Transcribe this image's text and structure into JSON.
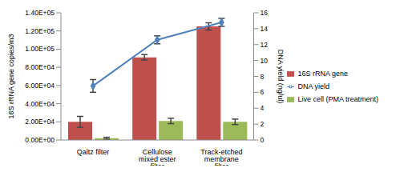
{
  "chart_data": {
    "type": "bar",
    "categories": [
      "Qaltz filter",
      "Cellulose mixed ester filter",
      "Track-etched membrane filter"
    ],
    "series": [
      {
        "name": "16S rRNA gene",
        "type": "bar",
        "color": "#c0504d",
        "values": [
          20000,
          91000,
          125000
        ],
        "errors": [
          6000,
          3000,
          4000
        ]
      },
      {
        "name": "Live cell (PMA treatment)",
        "type": "bar",
        "color": "#9bbb59",
        "values": [
          2000,
          21000,
          20000
        ],
        "errors": [
          1000,
          3000,
          3000
        ]
      },
      {
        "name": "DNA yield",
        "type": "line",
        "axis": "y2",
        "color": "#4f81bd",
        "marker": "diamond",
        "values": [
          6.8,
          12.6,
          14.8
        ],
        "errors": [
          0.8,
          0.5,
          0.5
        ]
      }
    ],
    "y_label": "16S rRNA gene copies/m3",
    "y2_label": "DNA yield (ng/ul)",
    "ylim": [
      0,
      140000
    ],
    "yticks": [
      {
        "value": 0,
        "label": "0.00E+00"
      },
      {
        "value": 20000,
        "label": "2.00E+04"
      },
      {
        "value": 40000,
        "label": "4.00E+04"
      },
      {
        "value": 60000,
        "label": "6.00E+04"
      },
      {
        "value": 80000,
        "label": "8.00E+04"
      },
      {
        "value": 100000,
        "label": "1.00E+05"
      },
      {
        "value": 120000,
        "label": "1.20E+05"
      },
      {
        "value": 140000,
        "label": "1.40E+05"
      }
    ],
    "y2lim": [
      0,
      16
    ],
    "y2ticks": [
      0,
      2,
      4,
      6,
      8,
      10,
      12,
      14,
      16
    ],
    "legend": "right"
  }
}
